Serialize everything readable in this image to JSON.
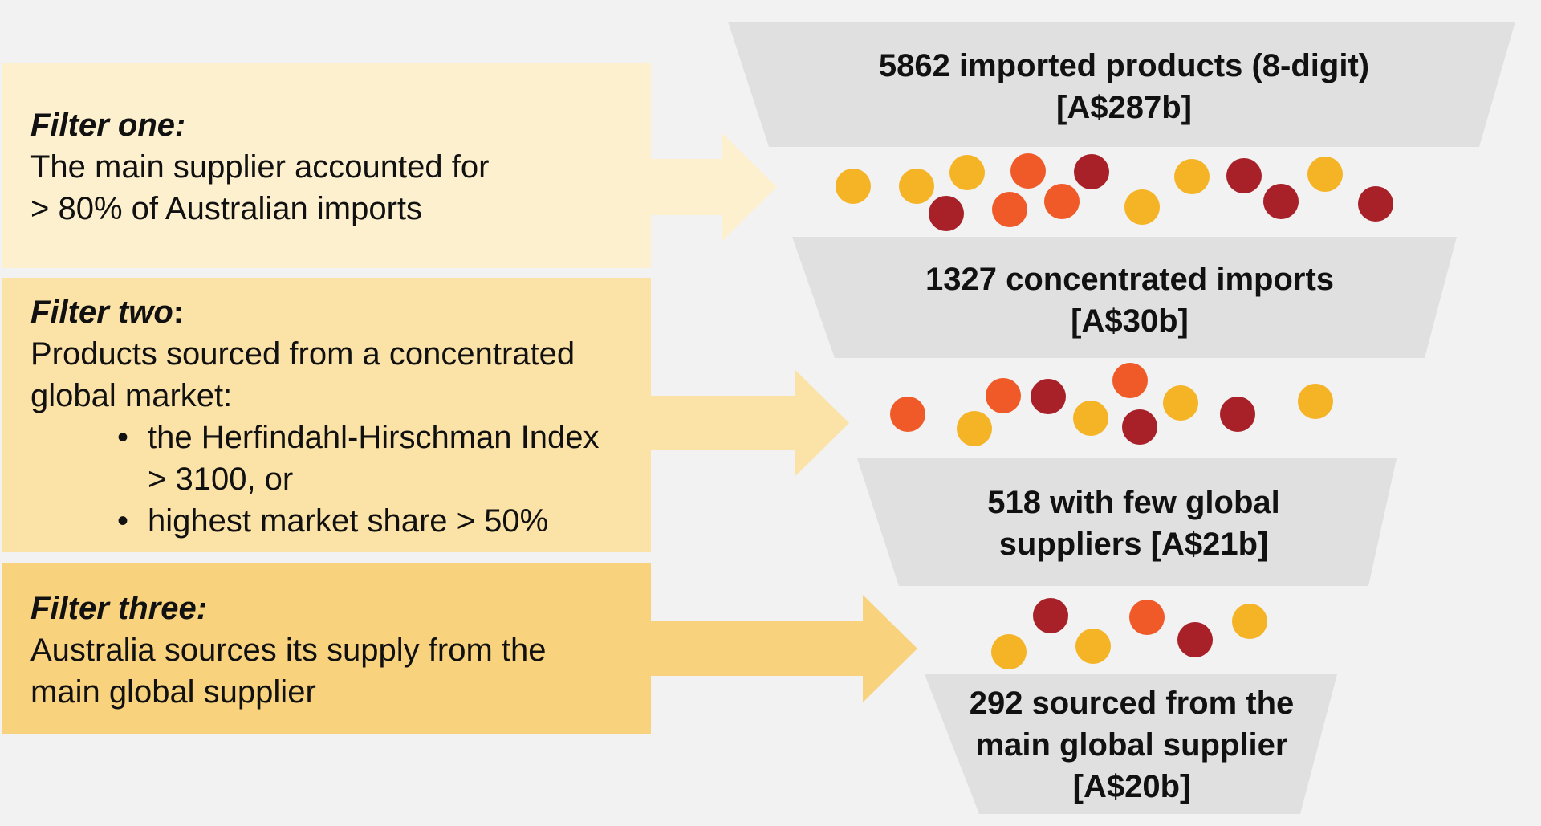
{
  "colors": {
    "background": "#f2f2f2",
    "funnel": "#e0e0e0",
    "filter_one": "#fdf0cf",
    "filter_two": "#fbe2a6",
    "filter_three": "#f8d27d",
    "dot_yellow": "#f5b326",
    "dot_orange": "#ef5a28",
    "dot_red": "#a82028"
  },
  "filters": [
    {
      "title": "Filter one:",
      "text_lines": [
        "The main supplier accounted for",
        "> 80% of Australian imports"
      ]
    },
    {
      "title": "Filter two",
      "title_suffix": ":",
      "intro_lines": [
        "Products sourced from a concentrated",
        "global market:"
      ],
      "criteria": [
        {
          "lines": [
            "the Herfindahl-Hirschman Index",
            "> 3100, or"
          ]
        },
        {
          "lines": [
            "highest market share > 50%"
          ]
        }
      ]
    },
    {
      "title": "Filter three:",
      "text_lines": [
        "Australia sources its supply from the",
        "main global supplier"
      ]
    }
  ],
  "funnel_stages": [
    {
      "lines": [
        "5862 imported products (8-digit)",
        "[A$287b]"
      ]
    },
    {
      "lines": [
        "1327 concentrated imports",
        "[A$30b]"
      ]
    },
    {
      "lines": [
        "518 with few global",
        "suppliers [A$21b]"
      ]
    },
    {
      "lines": [
        "292 sourced from the",
        "main global supplier",
        "[A$20b]"
      ]
    }
  ],
  "particle_groups": [
    {
      "dots": [
        "yellow",
        "yellow",
        "yellow",
        "orange",
        "red",
        "red",
        "orange",
        "orange",
        "yellow",
        "yellow",
        "red",
        "red",
        "yellow",
        "red"
      ]
    },
    {
      "dots": [
        "orange",
        "yellow",
        "orange",
        "red",
        "yellow",
        "orange",
        "red",
        "yellow",
        "red",
        "yellow"
      ]
    },
    {
      "dots": [
        "yellow",
        "red",
        "yellow",
        "orange",
        "red",
        "yellow"
      ]
    }
  ]
}
